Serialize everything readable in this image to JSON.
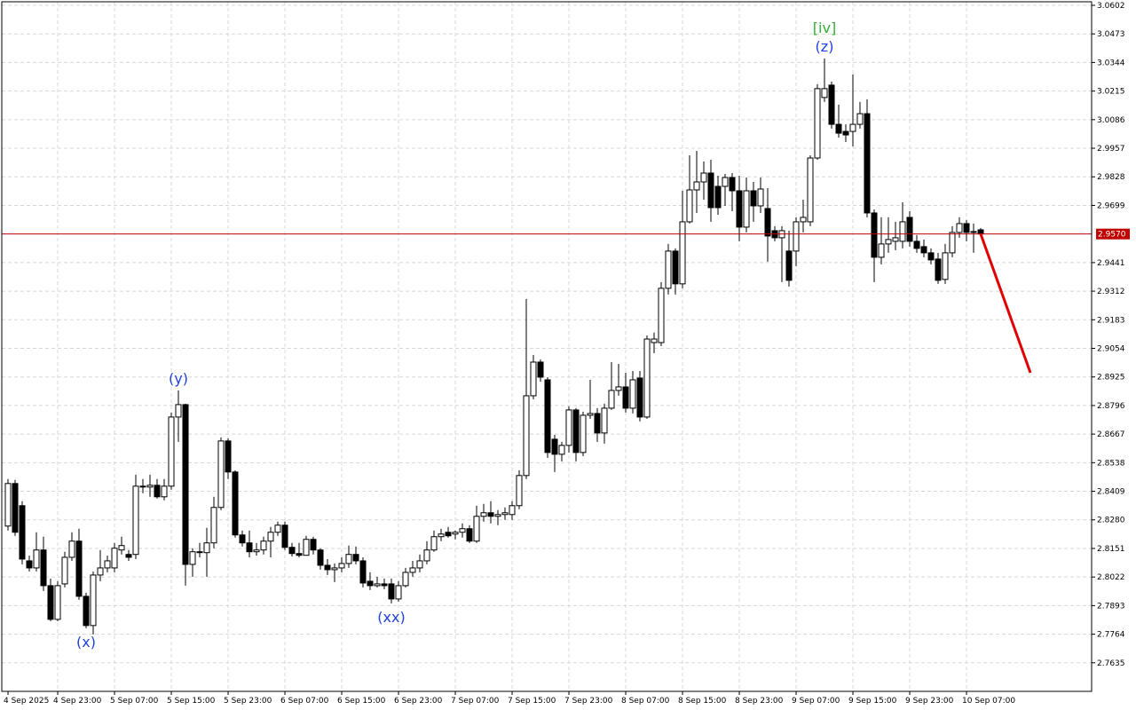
{
  "chart_data": {
    "type": "candlestick",
    "ylim": [
      2.7506,
      3.0618
    ],
    "yticks": [
      3.0602,
      3.0473,
      3.0344,
      3.0215,
      3.0086,
      2.9957,
      2.9828,
      2.9699,
      2.9441,
      2.9312,
      2.9183,
      2.9054,
      2.8925,
      2.8796,
      2.8667,
      2.8538,
      2.8409,
      {
        "value": 2.828,
        "label": "2.8280"
      },
      2.8151,
      2.8022,
      2.7893,
      2.7764,
      2.7635
    ],
    "xticks": [
      {
        "value": 0,
        "label": "4 Sep 2025"
      },
      {
        "value": 7,
        "label": "4 Sep 23:00"
      },
      {
        "value": 15,
        "label": "5 Sep 07:00"
      },
      {
        "value": 23,
        "label": "5 Sep 15:00"
      },
      {
        "value": 31,
        "label": "5 Sep 23:00"
      },
      {
        "value": 39,
        "label": "6 Sep 07:00"
      },
      {
        "value": 47,
        "label": "6 Sep 15:00"
      },
      {
        "value": 55,
        "label": "6 Sep 23:00"
      },
      {
        "value": 63,
        "label": "7 Sep 07:00"
      },
      {
        "value": 71,
        "label": "7 Sep 15:00"
      },
      {
        "value": 79,
        "label": "7 Sep 23:00"
      },
      {
        "value": 87,
        "label": "8 Sep 07:00"
      },
      {
        "value": 95,
        "label": "8 Sep 15:00"
      },
      {
        "value": 103,
        "label": "8 Sep 23:00"
      },
      {
        "value": 111,
        "label": "9 Sep 07:00"
      },
      {
        "value": 119,
        "label": "9 Sep 15:00"
      },
      {
        "value": 127,
        "label": "9 Sep 23:00"
      },
      {
        "value": 135,
        "label": "10 Sep 07:00"
      }
    ],
    "grid": true,
    "up_color": "#ffffff",
    "down_color": "#000000",
    "ohlc": [
      [
        2.8252,
        2.8464,
        2.8232,
        2.8444
      ],
      [
        2.8444,
        2.846,
        2.8208,
        2.8224
      ],
      [
        2.8344,
        2.8364,
        2.8079,
        2.8103
      ],
      [
        2.8095,
        2.8119,
        2.8047,
        2.8063
      ],
      [
        2.8063,
        2.8224,
        2.8047,
        2.8144
      ],
      [
        2.8144,
        2.8204,
        2.7959,
        2.7983
      ],
      [
        2.7983,
        2.8015,
        2.7823,
        2.7831
      ],
      [
        2.7831,
        2.8003,
        2.7823,
        2.7983
      ],
      [
        2.7991,
        2.8136,
        2.7975,
        2.8111
      ],
      [
        2.8111,
        2.8224,
        2.8095,
        2.8184
      ],
      [
        2.8184,
        2.824,
        2.7919,
        2.7935
      ],
      [
        2.7935,
        2.7951,
        2.7791,
        2.7803
      ],
      [
        2.7803,
        2.8047,
        2.7763,
        2.8031
      ],
      [
        2.8031,
        2.8144,
        2.8003,
        2.8063
      ],
      [
        2.8063,
        2.8119,
        2.8043,
        2.8095
      ],
      [
        2.8063,
        2.8176,
        2.8043,
        2.8152
      ],
      [
        2.8144,
        2.8204,
        2.8124,
        2.8164
      ],
      [
        2.8124,
        2.8144,
        2.8095,
        2.8111
      ],
      [
        2.8124,
        2.8484,
        2.8103,
        2.8432
      ],
      [
        2.8432,
        2.8464,
        2.84,
        2.8428
      ],
      [
        2.8428,
        2.8484,
        2.8384,
        2.8436
      ],
      [
        2.8436,
        2.8464,
        2.8376,
        2.8384
      ],
      [
        2.8384,
        2.8464,
        2.8368,
        2.8432
      ],
      [
        2.8432,
        2.8764,
        2.8416,
        2.8744
      ],
      [
        2.8744,
        2.8864,
        2.8632,
        2.88
      ],
      [
        2.88,
        2.8804,
        2.7983,
        2.8079
      ],
      [
        2.8079,
        2.8152,
        2.8023,
        2.8136
      ],
      [
        2.8136,
        2.8176,
        2.8111,
        2.8132
      ],
      [
        2.8132,
        2.8244,
        2.8023,
        2.8176
      ],
      [
        2.8176,
        2.8384,
        2.8152,
        2.8336
      ],
      [
        2.8336,
        2.8652,
        2.8324,
        2.8636
      ],
      [
        2.8636,
        2.8648,
        2.8464,
        2.8496
      ],
      [
        2.8496,
        2.8504,
        2.82,
        2.8212
      ],
      [
        2.8212,
        2.8232,
        2.816,
        2.8176
      ],
      [
        2.8176,
        2.8232,
        2.8111,
        2.8136
      ],
      [
        2.8136,
        2.8176,
        2.8119,
        2.8144
      ],
      [
        2.8144,
        2.8204,
        2.8124,
        2.8184
      ],
      [
        2.8184,
        2.8248,
        2.8111,
        2.8224
      ],
      [
        2.8224,
        2.8272,
        2.8208,
        2.8256
      ],
      [
        2.8256,
        2.8272,
        2.8144,
        2.8156
      ],
      [
        2.8156,
        2.8176,
        2.8115,
        2.8128
      ],
      [
        2.8128,
        2.8176,
        2.8111,
        2.812
      ],
      [
        2.812,
        2.8208,
        2.8119,
        2.8192
      ],
      [
        2.8192,
        2.8204,
        2.8124,
        2.8144
      ],
      [
        2.8144,
        2.8152,
        2.8055,
        2.8075
      ],
      [
        2.8075,
        2.8103,
        2.8031,
        2.8055
      ],
      [
        2.8055,
        2.8083,
        2.7999,
        2.8063
      ],
      [
        2.8063,
        2.8111,
        2.8043,
        2.8083
      ],
      [
        2.8083,
        2.8164,
        2.8063,
        2.8124
      ],
      [
        2.8124,
        2.816,
        2.8079,
        2.8095
      ],
      [
        2.8095,
        2.8111,
        2.7975,
        2.7995
      ],
      [
        2.8003,
        2.8043,
        2.7963,
        2.7983
      ],
      [
        2.7983,
        2.8023,
        2.7975,
        2.7991
      ],
      [
        2.7991,
        2.8015,
        2.7967,
        2.7983
      ],
      [
        2.7991,
        2.8015,
        2.7903,
        2.7923
      ],
      [
        2.7923,
        2.8003,
        2.7911,
        2.7983
      ],
      [
        2.7983,
        2.8063,
        2.7975,
        2.8043
      ],
      [
        2.8043,
        2.8095,
        2.8023,
        2.8063
      ],
      [
        2.8063,
        2.8124,
        2.8043,
        2.8095
      ],
      [
        2.8095,
        2.8184,
        2.8079,
        2.8144
      ],
      [
        2.8144,
        2.8232,
        2.8136,
        2.8204
      ],
      [
        2.8204,
        2.824,
        2.8184,
        2.8216
      ],
      [
        2.8224,
        2.8248,
        2.82,
        2.8208
      ],
      [
        2.8216,
        2.8232,
        2.8192,
        2.8224
      ],
      [
        2.8224,
        2.8264,
        2.82,
        2.824
      ],
      [
        2.824,
        2.8256,
        2.8176,
        2.8184
      ],
      [
        2.8184,
        2.8344,
        2.8176,
        2.8296
      ],
      [
        2.8296,
        2.8352,
        2.8272,
        2.8312
      ],
      [
        2.8312,
        2.8364,
        2.8264,
        2.8296
      ],
      [
        2.8296,
        2.8324,
        2.8256,
        2.8304
      ],
      [
        2.8304,
        2.8336,
        2.828,
        2.8312
      ],
      [
        2.8304,
        2.8364,
        2.828,
        2.8344
      ],
      [
        2.8344,
        2.8504,
        2.8328,
        2.848
      ],
      [
        2.848,
        2.9277,
        2.8464,
        2.884
      ],
      [
        2.884,
        2.9024,
        2.8824,
        2.8992
      ],
      [
        2.8992,
        2.9004,
        2.8904,
        2.8924
      ],
      [
        2.8912,
        2.8924,
        2.856,
        2.8584
      ],
      [
        2.8644,
        2.8664,
        2.8496,
        2.8576
      ],
      [
        2.8576,
        2.8632,
        2.8544,
        2.8616
      ],
      [
        2.8616,
        2.8792,
        2.8584,
        2.8776
      ],
      [
        2.8776,
        2.8784,
        2.8544,
        2.8584
      ],
      [
        2.8584,
        2.8768,
        2.8568,
        2.8752
      ],
      [
        2.8752,
        2.8912,
        2.8736,
        2.876
      ],
      [
        2.876,
        2.8784,
        2.8632,
        2.8672
      ],
      [
        2.8672,
        2.8804,
        2.8624,
        2.8784
      ],
      [
        2.8784,
        2.8992,
        2.8776,
        2.8864
      ],
      [
        2.8864,
        2.8984,
        2.884,
        2.888
      ],
      [
        2.888,
        2.8944,
        2.8764,
        2.8784
      ],
      [
        2.8784,
        2.8952,
        2.876,
        2.8912
      ],
      [
        2.892,
        2.8952,
        2.8724,
        2.8744
      ],
      [
        2.8744,
        2.9112,
        2.8736,
        2.9096
      ],
      [
        2.908,
        2.9125,
        2.9032,
        2.9096
      ],
      [
        2.908,
        2.9353,
        2.9064,
        2.9325
      ],
      [
        2.9325,
        2.9525,
        2.9297,
        2.9493
      ],
      [
        2.9493,
        2.9505,
        2.9297,
        2.9345
      ],
      [
        2.9345,
        2.9765,
        2.9325,
        2.9625
      ],
      [
        2.9625,
        2.9925,
        2.9617,
        2.9769
      ],
      [
        2.9769,
        2.9945,
        2.9665,
        2.9805
      ],
      [
        2.9805,
        2.9897,
        2.9725,
        2.9845
      ],
      [
        2.9845,
        2.9905,
        2.9625,
        2.9689
      ],
      [
        2.9785,
        2.9833,
        2.9657,
        2.9689
      ],
      [
        2.9785,
        2.9841,
        2.9697,
        2.9825
      ],
      [
        2.9825,
        2.9845,
        2.9673,
        2.9765
      ],
      [
        2.9765,
        2.9833,
        2.9537,
        2.9601
      ],
      [
        2.9601,
        2.9825,
        2.9577,
        2.9765
      ],
      [
        2.9765,
        2.9805,
        2.9625,
        2.9697
      ],
      [
        2.9697,
        2.9825,
        2.9665,
        2.9773
      ],
      [
        2.9685,
        2.9777,
        2.9445,
        2.9561
      ],
      [
        2.9585,
        2.9605,
        2.9537,
        2.9553
      ],
      [
        2.9553,
        2.9605,
        2.9353,
        2.9585
      ],
      [
        2.9493,
        2.9585,
        2.9333,
        2.9361
      ],
      [
        2.9493,
        2.9645,
        2.9425,
        2.9625
      ],
      [
        2.9625,
        2.9725,
        2.9577,
        2.9645
      ],
      [
        2.9625,
        2.9925,
        2.9605,
        2.9913
      ],
      [
        2.9913,
        3.0246,
        2.9905,
        3.0226
      ],
      [
        3.0186,
        3.0362,
        3.0166,
        3.0226
      ],
      [
        3.0242,
        3.0258,
        3.0046,
        3.0065
      ],
      [
        3.0065,
        3.0154,
        3.0005,
        3.0025
      ],
      [
        3.0033,
        3.0065,
        2.9985,
        3.0017
      ],
      [
        3.0033,
        3.029,
        2.9965,
        3.0065
      ],
      [
        3.0065,
        3.0166,
        3.0046,
        3.0113
      ],
      [
        3.0113,
        3.0178,
        2.9645,
        2.9665
      ],
      [
        2.9665,
        2.9681,
        2.9353,
        2.9465
      ],
      [
        2.9465,
        2.9645,
        2.9433,
        2.9525
      ],
      [
        2.9525,
        2.9645,
        2.9485,
        2.9545
      ],
      [
        2.9537,
        2.9625,
        2.9497,
        2.9553
      ],
      [
        2.9537,
        2.9713,
        2.9505,
        2.9625
      ],
      [
        2.9645,
        2.9673,
        2.9513,
        2.9537
      ],
      [
        2.9537,
        2.9565,
        2.9485,
        2.9505
      ],
      [
        2.9513,
        2.9545,
        2.9465,
        2.9485
      ],
      [
        2.9485,
        2.9505,
        2.9433,
        2.9453
      ],
      [
        2.9457,
        2.9485,
        2.9345,
        2.9361
      ],
      [
        2.9365,
        2.9525,
        2.9345,
        2.9485
      ],
      [
        2.9485,
        2.9605,
        2.9465,
        2.9577
      ],
      [
        2.9577,
        2.9645,
        2.9553,
        2.9617
      ],
      [
        2.9617,
        2.9633,
        2.9537,
        2.9577
      ],
      [
        2.9577,
        2.9617,
        2.9485,
        2.9581
      ],
      [
        2.9589,
        2.9597,
        2.9561,
        2.957
      ]
    ],
    "price_line": {
      "value": 2.957,
      "label": "2.9570",
      "color": "#c00000"
    },
    "forecast": {
      "start": 2.957,
      "end": 2.8944,
      "bars": 7,
      "color": "#e00000"
    },
    "annotations": [
      {
        "text": "(x)",
        "index": 11,
        "position": "below",
        "color": "#2040e0"
      },
      {
        "text": "(y)",
        "index": 24,
        "position": "above",
        "color": "#2040e0"
      },
      {
        "text": "(xx)",
        "index": 54,
        "position": "below",
        "color": "#2040e0"
      },
      {
        "text": "(z)",
        "index": 115,
        "position": "above",
        "color": "#2040e0"
      },
      {
        "text": "[iv]",
        "index": 115,
        "position": "above",
        "color": "#30b030"
      }
    ]
  }
}
